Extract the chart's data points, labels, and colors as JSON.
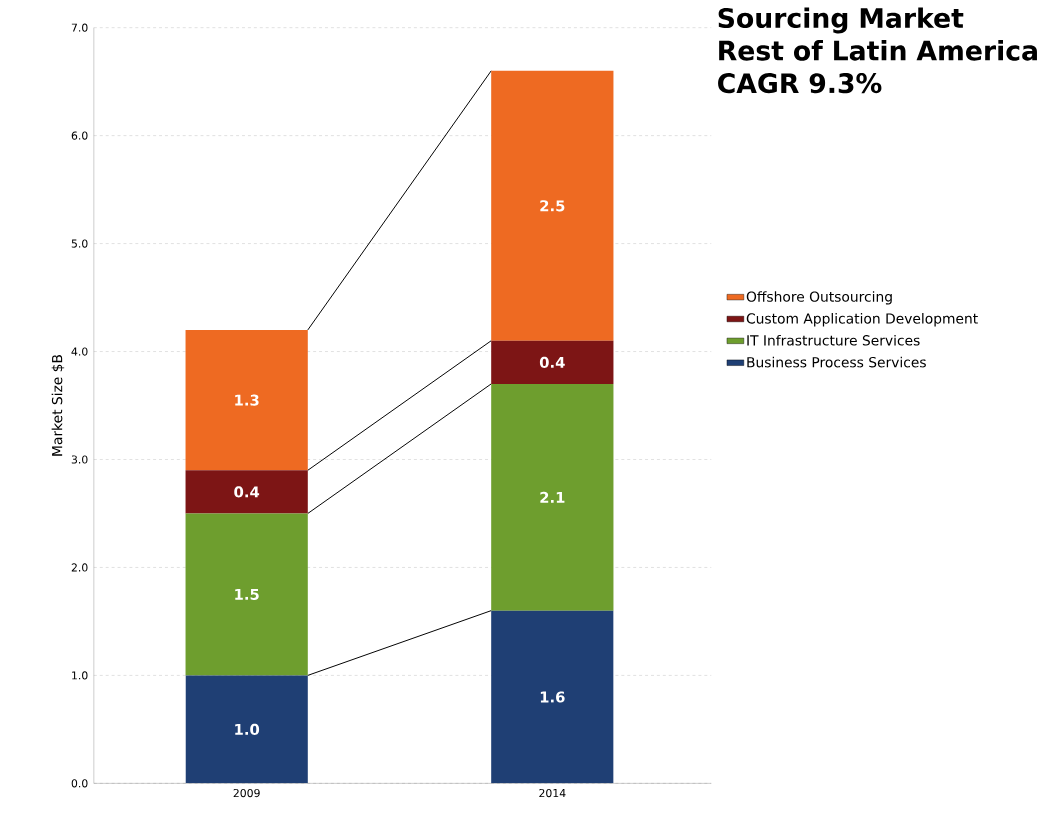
{
  "chart_data": {
    "type": "bar",
    "stacked": true,
    "title": "Sourcing Market\nRest of Latin America\nCAGR 9.3%",
    "ylabel": "Market Size $B",
    "categories": [
      "2009",
      "2014"
    ],
    "series": [
      {
        "name": "Business Process Services",
        "color": "#1f3f74",
        "values": [
          1.0,
          1.6
        ],
        "value_labels": [
          "1.0",
          "1.6"
        ]
      },
      {
        "name": "IT Infrastructure Services",
        "color": "#6e9e2e",
        "values": [
          1.5,
          2.1
        ],
        "value_labels": [
          "1.5",
          "2.1"
        ]
      },
      {
        "name": "Custom Application Development",
        "color": "#7d1515",
        "values": [
          0.4,
          0.4
        ],
        "value_labels": [
          "0.4",
          "0.4"
        ]
      },
      {
        "name": "Offshore Outsourcing",
        "color": "#ee6a22",
        "values": [
          1.3,
          2.5
        ],
        "value_labels": [
          "1.3",
          "2.5"
        ]
      }
    ],
    "ylim": [
      0,
      7
    ],
    "yticks": [
      {
        "value": 0,
        "label": "0.0"
      },
      {
        "value": 1,
        "label": "1.0"
      },
      {
        "value": 2,
        "label": "2.0"
      },
      {
        "value": 3,
        "label": "3.0"
      },
      {
        "value": 4,
        "label": "4.0"
      },
      {
        "value": 5,
        "label": "5.0"
      },
      {
        "value": 6,
        "label": "6.0"
      },
      {
        "value": 7,
        "label": "7.0"
      }
    ],
    "grid": "y",
    "legend": "right"
  }
}
